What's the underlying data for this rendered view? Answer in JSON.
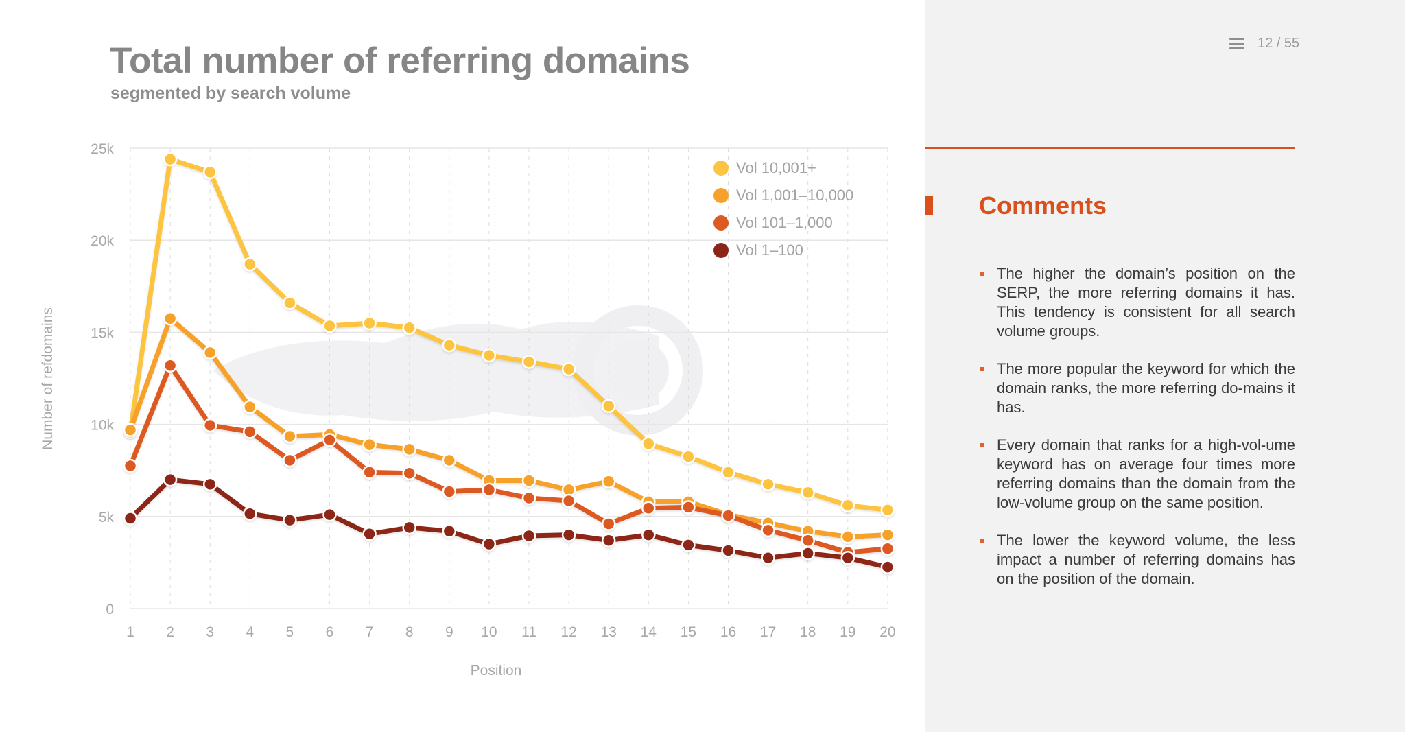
{
  "slide": {
    "title": "Total number of referring domains",
    "subtitle": "segmented by search volume"
  },
  "pager": {
    "menu_icon": "hamburger-menu-icon",
    "current": 12,
    "total": 55,
    "label": "12 / 55"
  },
  "comments": {
    "heading": "Comments",
    "items": [
      "The higher the domain’s position on the SERP, the more referring domains it has. This tendency is consistent for all search volume groups.",
      "The more popular the keyword for which the domain ranks, the more referring do-mains it has.",
      "Every domain that ranks for a high-vol-ume keyword has on average four times more referring domains than the domain from the low-volume group on the same position.",
      "The lower the keyword volume, the less impact a number of referring domains has on the position of the domain."
    ]
  },
  "colors": {
    "accent": "#d9501c",
    "vol_10001_plus": "#fcc440",
    "vol_1001_10000": "#f5a12c",
    "vol_101_1000": "#dc5a24",
    "vol_1_100": "#8c2519"
  },
  "chart_data": {
    "type": "line",
    "title": "Total number of referring domains",
    "subtitle": "segmented by search volume",
    "xlabel": "Position",
    "ylabel": "Number of refdomains",
    "x": [
      1,
      2,
      3,
      4,
      5,
      6,
      7,
      8,
      9,
      10,
      11,
      12,
      13,
      14,
      15,
      16,
      17,
      18,
      19,
      20
    ],
    "ylim": [
      0,
      25000
    ],
    "yticks": [
      0,
      5000,
      10000,
      15000,
      20000,
      25000
    ],
    "ytick_labels": [
      "0",
      "5k",
      "10k",
      "15k",
      "20k",
      "25k"
    ],
    "grid": {
      "horizontal": "solid",
      "vertical": "dashed"
    },
    "legend_position": "top-right",
    "series": [
      {
        "name": "Vol 10,001+",
        "color": "#fcc440",
        "values": [
          9600,
          24400,
          23700,
          18700,
          16600,
          15350,
          15500,
          15250,
          14300,
          13750,
          13400,
          13000,
          11000,
          8950,
          8250,
          7400,
          6750,
          6300,
          5600,
          5350
        ]
      },
      {
        "name": "Vol 1,001–10,000",
        "color": "#f5a12c",
        "values": [
          9700,
          15750,
          13900,
          10950,
          9350,
          9450,
          8900,
          8650,
          8050,
          6950,
          6950,
          6450,
          6900,
          5800,
          5800,
          5100,
          4650,
          4200,
          3900,
          4000
        ]
      },
      {
        "name": "Vol 101–1,000",
        "color": "#dc5a24",
        "values": [
          7750,
          13200,
          9950,
          9600,
          8050,
          9150,
          7400,
          7350,
          6350,
          6450,
          6000,
          5850,
          4600,
          5450,
          5500,
          5050,
          4250,
          3700,
          3050,
          3250
        ]
      },
      {
        "name": "Vol 1–100",
        "color": "#8c2519",
        "values": [
          4900,
          7000,
          6750,
          5150,
          4800,
          5100,
          4050,
          4400,
          4200,
          3500,
          3950,
          4000,
          3700,
          4000,
          3450,
          3150,
          2750,
          3000,
          2750,
          2250
        ]
      }
    ]
  }
}
